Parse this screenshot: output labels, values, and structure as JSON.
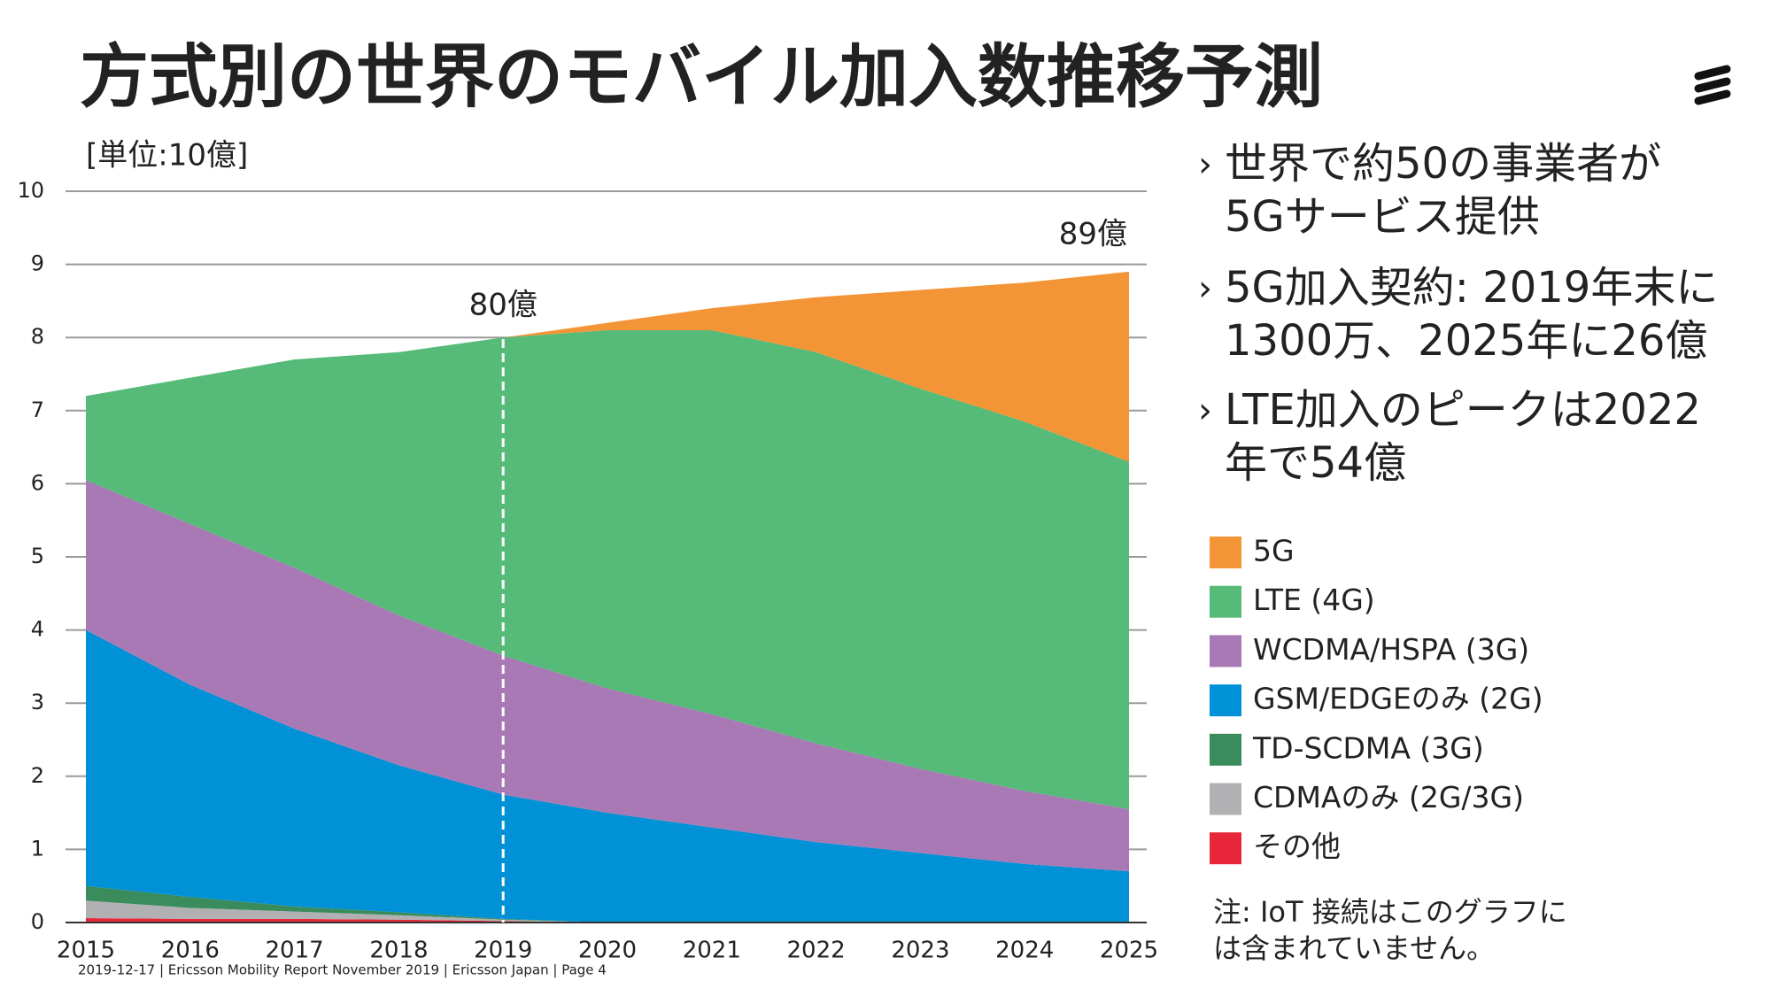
{
  "header": {
    "title": "方式別の世界のモバイル加入数推移予測"
  },
  "bullets": [
    [
      "世界で約50の事業者が",
      "5Gサービス提供"
    ],
    [
      "5G加入契約: 2019年末に",
      "1300万、2025年に26億"
    ],
    [
      "LTE加入のピークは2022",
      "年で54億"
    ]
  ],
  "note": [
    "注: IoT 接続はこのグラフに",
    "は含まれていません。"
  ],
  "footer": "2019-12-17 | Ericsson Mobility Report November 2019 | Ericsson Japan | Page 4",
  "chart_data": {
    "type": "area",
    "stacked": true,
    "y_label": "[単位:10億]",
    "x": [
      2015,
      2016,
      2017,
      2018,
      2019,
      2020,
      2021,
      2022,
      2023,
      2024,
      2025
    ],
    "ylim": [
      0,
      10
    ],
    "yticks": [
      0,
      1,
      2,
      3,
      4,
      5,
      6,
      7,
      8,
      9,
      10
    ],
    "grid": true,
    "annotations": [
      "80億",
      "89億"
    ],
    "series": [
      {
        "name": "5G",
        "color": "#f39436",
        "values": [
          0,
          0,
          0,
          0,
          0,
          0.1,
          0.3,
          0.75,
          1.35,
          1.9,
          2.6
        ]
      },
      {
        "name": "LTE (4G)",
        "color": "#56bb78",
        "values": [
          1.15,
          2.0,
          2.85,
          3.6,
          4.35,
          4.9,
          5.25,
          5.35,
          5.2,
          5.05,
          4.75
        ]
      },
      {
        "name": "WCDMA/HSPA (3G)",
        "color": "#a879b5",
        "values": [
          2.05,
          2.2,
          2.2,
          2.05,
          1.9,
          1.7,
          1.55,
          1.35,
          1.15,
          1.0,
          0.85
        ]
      },
      {
        "name": "GSM/EDGEのみ (2G)",
        "color": "#0091d6",
        "values": [
          3.5,
          2.9,
          2.43,
          2.01,
          1.7,
          1.5,
          1.3,
          1.1,
          0.95,
          0.8,
          0.7
        ]
      },
      {
        "name": "TD-SCDMA (3G)",
        "color": "#3a8c5c",
        "values": [
          0.2,
          0.15,
          0.07,
          0.04,
          0.01,
          0,
          0,
          0,
          0,
          0,
          0
        ]
      },
      {
        "name": "CDMAのみ (2G/3G)",
        "color": "#b1b1b3",
        "values": [
          0.24,
          0.15,
          0.1,
          0.06,
          0.02,
          0,
          0,
          0,
          0,
          0,
          0
        ]
      },
      {
        "name": "その他",
        "color": "#e8283a",
        "values": [
          0.06,
          0.05,
          0.05,
          0.04,
          0.02,
          0,
          0,
          0,
          0,
          0,
          0
        ]
      }
    ]
  }
}
